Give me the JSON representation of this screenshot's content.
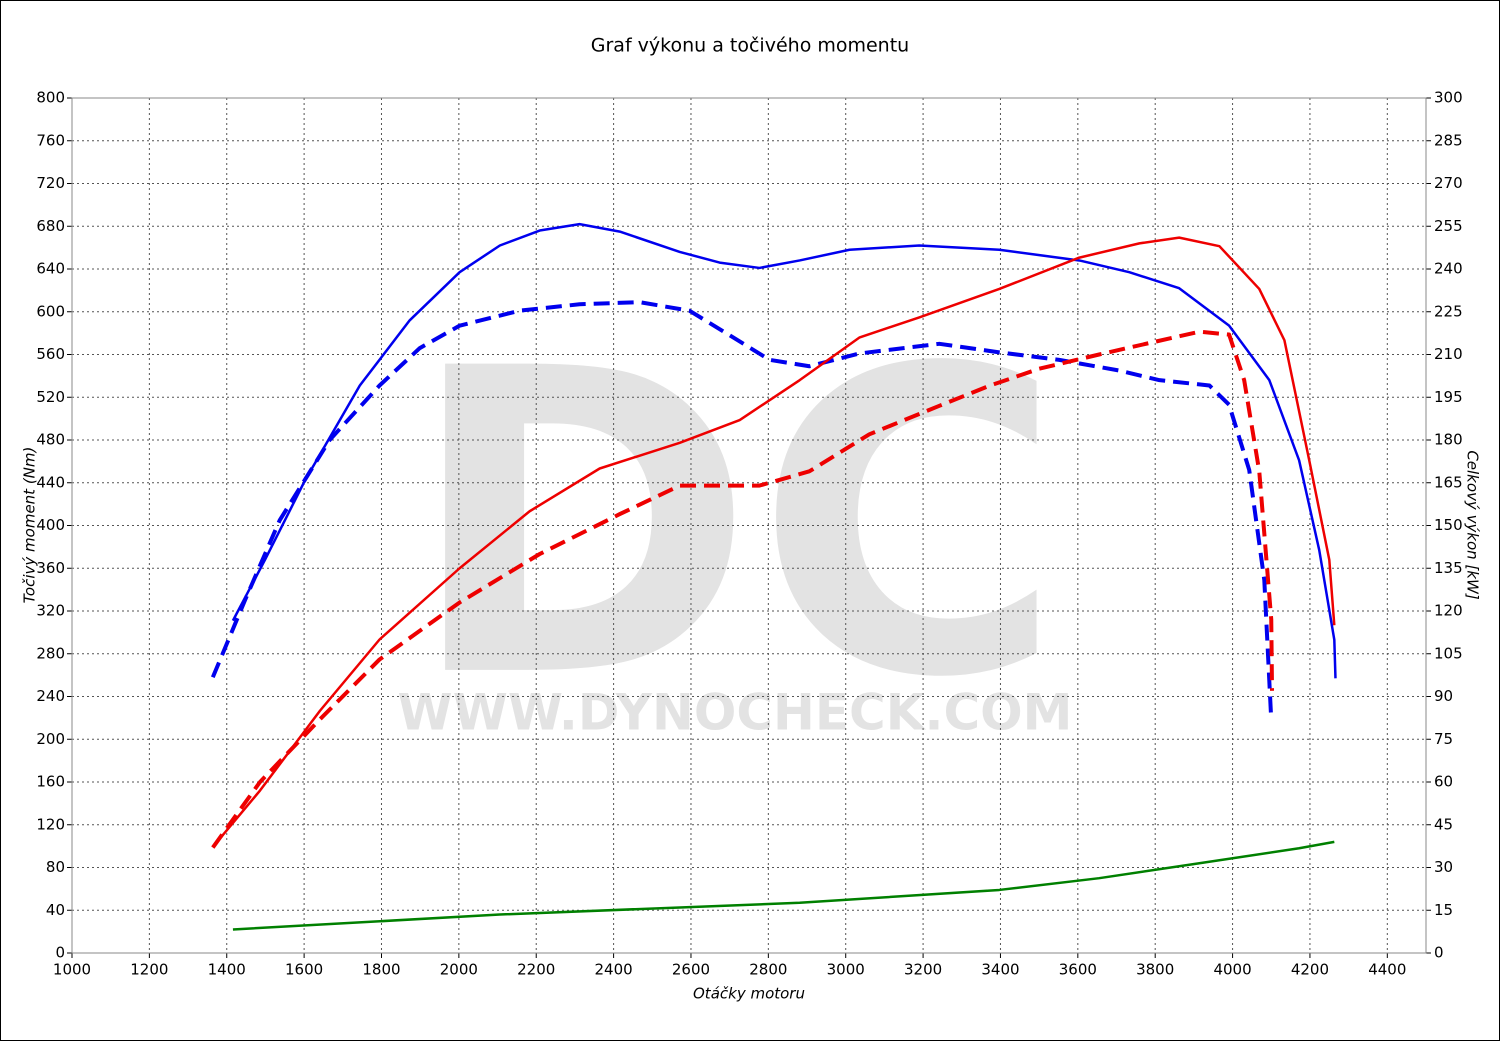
{
  "chart_data": {
    "type": "line",
    "title": "Graf výkonu a točivého momentu",
    "x_label": "Otáčky motoru",
    "y_label": "Točivý moment (Nm)",
    "y2_label": "Celkový výkon [kW]",
    "watermark": "DC",
    "watermark_url": "WWW.DYNOCHECK.COM",
    "xlim": [
      1000,
      4500
    ],
    "xticks": [
      1000,
      1200,
      1400,
      1600,
      1800,
      2000,
      2200,
      2400,
      2600,
      2800,
      3000,
      3200,
      3400,
      3600,
      3800,
      4000,
      4200,
      4400
    ],
    "ylim": [
      0,
      800
    ],
    "yticks": [
      0,
      40,
      80,
      120,
      160,
      200,
      240,
      280,
      320,
      360,
      400,
      440,
      480,
      520,
      560,
      600,
      640,
      680,
      720,
      760,
      800
    ],
    "y2lim": [
      0,
      300
    ],
    "y2ticks": [
      0,
      15,
      30,
      45,
      60,
      75,
      90,
      105,
      120,
      135,
      150,
      165,
      180,
      195,
      210,
      225,
      240,
      255,
      270,
      285,
      300
    ],
    "grid": true,
    "series": [
      {
        "color": "#0000ee",
        "dashed": false,
        "x": [
          1416,
          1499,
          1602,
          1744,
          1873,
          2002,
          2106,
          2209,
          2312,
          2416,
          2571,
          2674,
          2777,
          2881,
          3010,
          3190,
          3397,
          3604,
          3733,
          3862,
          3991,
          4095,
          4172,
          4224,
          4263,
          4266
        ],
        "values": [
          311,
          368,
          442,
          531,
          592,
          637,
          662,
          676,
          682,
          675,
          656,
          646,
          641,
          648,
          658,
          662,
          658,
          648,
          637,
          622,
          587,
          536,
          461,
          377,
          293,
          257
        ]
      },
      {
        "color": "#0000ee",
        "dashed": true,
        "x": [
          1364,
          1447,
          1537,
          1666,
          1795,
          1899,
          2002,
          2157,
          2312,
          2467,
          2596,
          2700,
          2803,
          2906,
          3036,
          3242,
          3397,
          3552,
          3707,
          3811,
          3940,
          3991,
          4043,
          4082,
          4100
        ],
        "values": [
          258,
          330,
          405,
          480,
          531,
          566,
          587,
          601,
          607,
          609,
          601,
          578,
          555,
          549,
          561,
          570,
          562,
          555,
          545,
          536,
          531,
          513,
          452,
          349,
          218
        ]
      },
      {
        "color": "#ee0000",
        "dashed": false,
        "axis": "y2",
        "x": [
          1369,
          1486,
          1641,
          1795,
          2002,
          2183,
          2364,
          2571,
          2726,
          2881,
          3036,
          3190,
          3397,
          3604,
          3759,
          3862,
          3966,
          4069,
          4134,
          4198,
          4250,
          4263
        ],
        "values": [
          38,
          57,
          85,
          110,
          135,
          155,
          170,
          179,
          187,
          201,
          216,
          223,
          233,
          244,
          249,
          251,
          248,
          233,
          215,
          173,
          138,
          115
        ]
      },
      {
        "color": "#ee0000",
        "dashed": true,
        "axis": "y2",
        "x": [
          1364,
          1486,
          1641,
          1795,
          2002,
          2209,
          2416,
          2571,
          2777,
          2906,
          3061,
          3242,
          3371,
          3500,
          3655,
          3784,
          3914,
          3991,
          4030,
          4069,
          4100,
          4102
        ],
        "values": [
          37,
          60,
          82,
          103,
          123,
          140,
          154,
          164,
          164,
          169,
          182,
          192,
          199,
          205,
          210,
          214,
          218,
          217,
          201,
          169,
          117,
          92
        ]
      },
      {
        "color": "#008000",
        "dashed": false,
        "x": [
          1416,
          2106,
          2881,
          3397,
          3655,
          3914,
          4172,
          4263
        ],
        "values": [
          22,
          36,
          47,
          59,
          70,
          84,
          98,
          104
        ]
      }
    ]
  }
}
